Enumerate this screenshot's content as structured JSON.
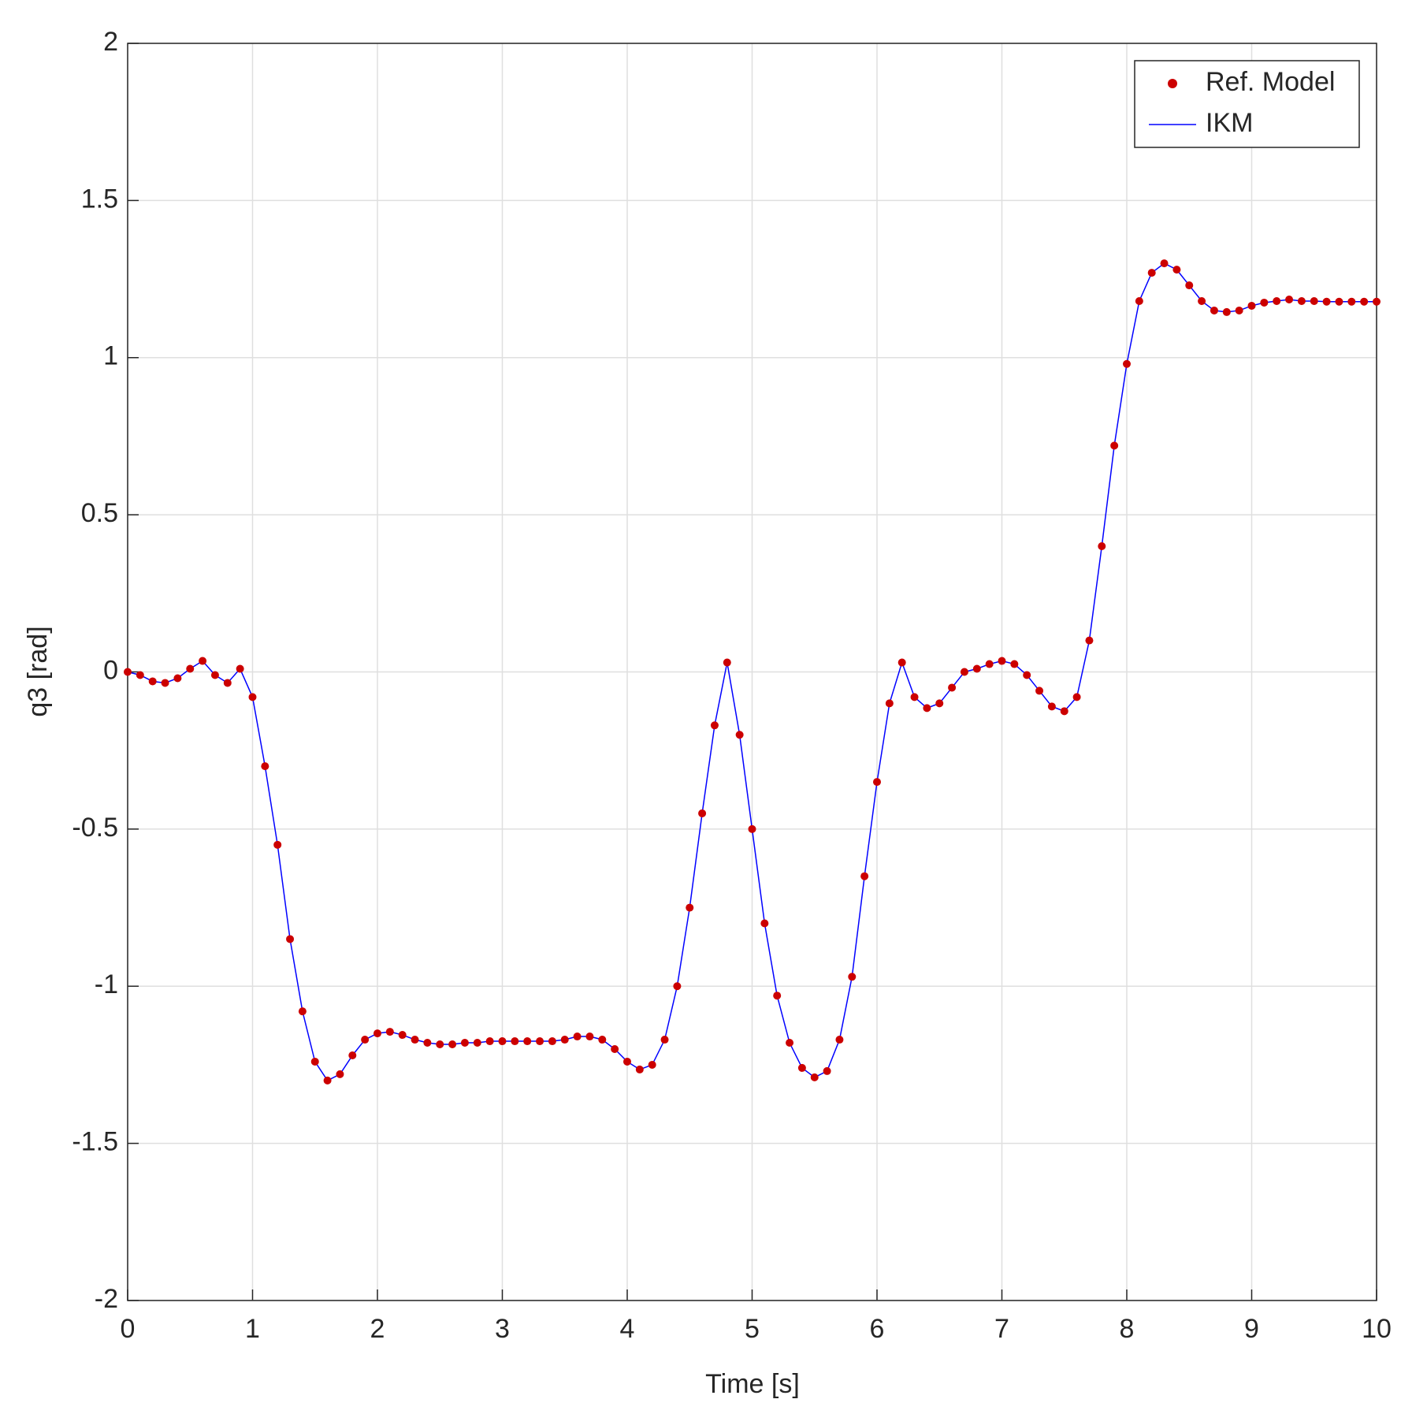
{
  "chart_data": {
    "type": "line",
    "xlabel": "Time [s]",
    "ylabel": "q3 [rad]",
    "x": [
      0,
      0.1,
      0.2,
      0.3,
      0.4,
      0.5,
      0.6,
      0.7,
      0.8,
      0.9,
      1,
      1.1,
      1.2,
      1.3,
      1.4,
      1.5,
      1.6,
      1.7,
      1.8,
      1.9,
      2,
      2.1,
      2.2,
      2.3,
      2.4,
      2.5,
      2.6,
      2.7,
      2.8,
      2.9,
      3,
      3.1,
      3.2,
      3.3,
      3.4,
      3.5,
      3.6,
      3.7,
      3.8,
      3.9,
      4,
      4.1,
      4.2,
      4.3,
      4.4,
      4.5,
      4.6,
      4.7,
      4.8,
      4.9,
      5,
      5.1,
      5.2,
      5.3,
      5.4,
      5.5,
      5.6,
      5.7,
      5.8,
      5.9,
      6,
      6.1,
      6.2,
      6.3,
      6.4,
      6.5,
      6.6,
      6.7,
      6.8,
      6.9,
      7,
      7.1,
      7.2,
      7.3,
      7.4,
      7.5,
      7.6,
      7.7,
      7.8,
      7.9,
      8,
      8.1,
      8.2,
      8.3,
      8.4,
      8.5,
      8.6,
      8.7,
      8.8,
      8.9,
      9,
      9.1,
      9.2,
      9.3,
      9.4,
      9.5,
      9.6,
      9.7,
      9.8,
      9.9,
      10
    ],
    "series": [
      {
        "name": "Ref. Model",
        "color": "#cc0000",
        "marker": "dot",
        "values": [
          0,
          -0.01,
          -0.03,
          -0.035,
          -0.02,
          0.01,
          0.035,
          -0.01,
          -0.035,
          0.01,
          -0.08,
          -0.3,
          -0.55,
          -0.85,
          -1.08,
          -1.24,
          -1.3,
          -1.28,
          -1.22,
          -1.17,
          -1.15,
          -1.145,
          -1.155,
          -1.17,
          -1.18,
          -1.185,
          -1.185,
          -1.18,
          -1.18,
          -1.175,
          -1.175,
          -1.175,
          -1.175,
          -1.175,
          -1.175,
          -1.17,
          -1.16,
          -1.16,
          -1.17,
          -1.2,
          -1.24,
          -1.265,
          -1.25,
          -1.17,
          -1,
          -0.75,
          -0.45,
          -0.17,
          0.03,
          -0.2,
          -0.5,
          -0.8,
          -1.03,
          -1.18,
          -1.26,
          -1.29,
          -1.27,
          -1.17,
          -0.97,
          -0.65,
          -0.35,
          -0.1,
          0.03,
          -0.08,
          -0.115,
          -0.1,
          -0.05,
          0,
          0.01,
          0.025,
          0.035,
          0.025,
          -0.01,
          -0.06,
          -0.11,
          -0.125,
          -0.08,
          0.1,
          0.4,
          0.72,
          0.98,
          1.18,
          1.27,
          1.3,
          1.28,
          1.23,
          1.18,
          1.15,
          1.145,
          1.15,
          1.165,
          1.175,
          1.18,
          1.185,
          1.18,
          1.18,
          1.178,
          1.178,
          1.178,
          1.178,
          1.178
        ]
      },
      {
        "name": "IKM",
        "color": "#0000ff",
        "marker": "line",
        "values": [
          0,
          -0.01,
          -0.03,
          -0.035,
          -0.02,
          0.01,
          0.035,
          -0.01,
          -0.035,
          0.01,
          -0.08,
          -0.3,
          -0.55,
          -0.85,
          -1.08,
          -1.24,
          -1.3,
          -1.28,
          -1.22,
          -1.17,
          -1.15,
          -1.145,
          -1.155,
          -1.17,
          -1.18,
          -1.185,
          -1.185,
          -1.18,
          -1.18,
          -1.175,
          -1.175,
          -1.175,
          -1.175,
          -1.175,
          -1.175,
          -1.17,
          -1.16,
          -1.16,
          -1.17,
          -1.2,
          -1.24,
          -1.265,
          -1.25,
          -1.17,
          -1,
          -0.75,
          -0.45,
          -0.17,
          0.03,
          -0.2,
          -0.5,
          -0.8,
          -1.03,
          -1.18,
          -1.26,
          -1.29,
          -1.27,
          -1.17,
          -0.97,
          -0.65,
          -0.35,
          -0.1,
          0.03,
          -0.08,
          -0.115,
          -0.1,
          -0.05,
          0,
          0.01,
          0.025,
          0.035,
          0.025,
          -0.01,
          -0.06,
          -0.11,
          -0.125,
          -0.08,
          0.1,
          0.4,
          0.72,
          0.98,
          1.18,
          1.27,
          1.3,
          1.28,
          1.23,
          1.18,
          1.15,
          1.145,
          1.15,
          1.165,
          1.175,
          1.18,
          1.185,
          1.18,
          1.18,
          1.178,
          1.178,
          1.178,
          1.178,
          1.178
        ]
      }
    ],
    "xlim": [
      0,
      10
    ],
    "xticks": [
      0,
      1,
      2,
      3,
      4,
      5,
      6,
      7,
      8,
      9,
      10
    ],
    "ylim": [
      -2,
      2
    ],
    "yticks": [
      -2,
      -1.5,
      -1,
      -0.5,
      0,
      0.5,
      1,
      1.5,
      2
    ],
    "grid": true,
    "legend": "upper-right"
  }
}
